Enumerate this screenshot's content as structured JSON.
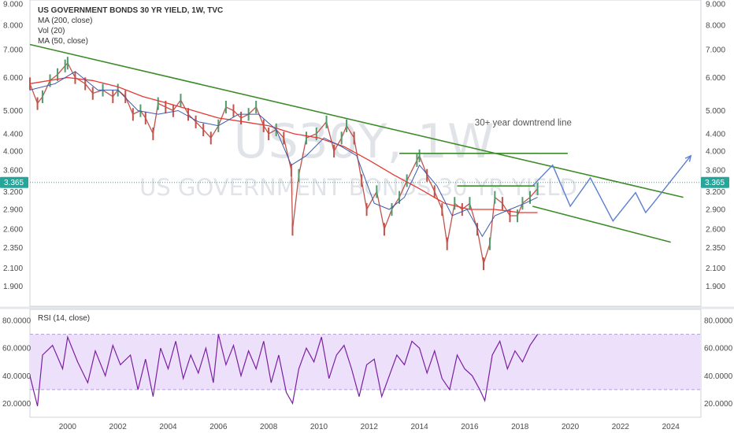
{
  "chart_data": {
    "type": "line",
    "title": "US GOVERNMENT BONDS 30 YR YIELD, 1W, TVC",
    "watermark_symbol": "US30Y, 1W",
    "watermark_name": "US GOVERNMENT BONDS 30 YR YIELD",
    "indicators": [
      "MA (200, close)",
      "Vol (20)",
      "MA (50, close)"
    ],
    "price_axis_ticks": [
      "1.900",
      "2.100",
      "2.350",
      "2.600",
      "2.900",
      "3.200",
      "3.600",
      "4.000",
      "4.400",
      "5.000",
      "6.000",
      "7.000",
      "8.000",
      "9.000"
    ],
    "price_axis_values": [
      1.9,
      2.1,
      2.35,
      2.6,
      2.9,
      3.2,
      3.6,
      4.0,
      4.4,
      5.0,
      6.0,
      7.0,
      8.0,
      9.0
    ],
    "ylim": [
      1.7,
      9.2
    ],
    "y_scale": "log",
    "x_ticks": [
      "2000",
      "2002",
      "2004",
      "2006",
      "2008",
      "2010",
      "2012",
      "2014",
      "2016",
      "2018",
      "2020",
      "2022",
      "2024"
    ],
    "x_tick_values": [
      2000,
      2002,
      2004,
      2006,
      2008,
      2010,
      2012,
      2014,
      2016,
      2018,
      2020,
      2022,
      2024
    ],
    "xlim": [
      1998.5,
      2025.2
    ],
    "last_price": "3.365",
    "last_price_value": 3.365,
    "colors": {
      "price_up": "#4f9b6b",
      "price_down": "#c2534b",
      "ma200": "#e53935",
      "ma50": "#3d59ab",
      "trendlines": "#3d8b2a",
      "projection": "#5b7fd0",
      "rsi": "#7b1fa2",
      "rsi_band": "#ede0fa",
      "price_line": "#27a89a",
      "badge": "#26a69a"
    },
    "price_series": {
      "x": [
        1998.5,
        1998.8,
        1999.0,
        1999.3,
        1999.6,
        1999.9,
        2000.0,
        2000.3,
        2000.7,
        2001.0,
        2001.4,
        2001.8,
        2002.0,
        2002.3,
        2002.6,
        2002.9,
        2003.1,
        2003.4,
        2003.6,
        2003.9,
        2004.2,
        2004.5,
        2004.8,
        2005.1,
        2005.4,
        2005.7,
        2006.0,
        2006.3,
        2006.6,
        2006.9,
        2007.2,
        2007.5,
        2007.8,
        2008.0,
        2008.3,
        2008.6,
        2008.9,
        2008.95,
        2009.2,
        2009.5,
        2009.9,
        2010.3,
        2010.6,
        2010.9,
        2011.1,
        2011.4,
        2011.7,
        2011.9,
        2012.3,
        2012.6,
        2012.9,
        2013.2,
        2013.5,
        2013.9,
        2014.0,
        2014.3,
        2014.6,
        2014.9,
        2015.1,
        2015.4,
        2015.7,
        2016.0,
        2016.3,
        2016.55,
        2016.8,
        2017.0,
        2017.3,
        2017.6,
        2017.9,
        2018.1,
        2018.4,
        2018.7
      ],
      "y": [
        5.8,
        5.2,
        5.4,
        5.9,
        6.1,
        6.4,
        6.5,
        6.0,
        5.8,
        5.5,
        5.6,
        5.4,
        5.6,
        5.4,
        4.9,
        5.0,
        4.8,
        4.4,
        5.2,
        5.1,
        5.0,
        5.3,
        4.9,
        4.7,
        4.5,
        4.3,
        4.6,
        5.1,
        5.0,
        4.8,
        4.9,
        5.1,
        4.6,
        4.4,
        4.5,
        4.3,
        3.6,
        2.6,
        3.5,
        4.3,
        4.4,
        4.7,
        4.0,
        4.3,
        4.6,
        4.3,
        3.4,
        2.9,
        3.2,
        2.6,
        2.9,
        3.1,
        3.4,
        3.8,
        3.9,
        3.5,
        3.2,
        2.9,
        2.4,
        3.0,
        2.9,
        3.0,
        2.6,
        2.15,
        2.4,
        3.1,
        3.0,
        2.8,
        2.8,
        3.0,
        3.1,
        3.25
      ]
    },
    "ma200_series": {
      "x": [
        1998.5,
        2000.0,
        2001.0,
        2002.0,
        2003.0,
        2004.0,
        2005.0,
        2006.0,
        2007.0,
        2008.0,
        2009.0,
        2010.0,
        2011.0,
        2012.0,
        2013.0,
        2014.0,
        2015.0,
        2016.0,
        2017.0,
        2018.0,
        2018.7
      ],
      "y": [
        5.8,
        6.0,
        5.9,
        5.7,
        5.4,
        5.2,
        5.0,
        4.8,
        4.7,
        4.6,
        4.4,
        4.3,
        4.1,
        3.8,
        3.5,
        3.25,
        3.0,
        2.9,
        2.9,
        2.85,
        2.85
      ]
    },
    "ma50_series": {
      "x": [
        1998.5,
        1999.5,
        2000.3,
        2001.2,
        2002.0,
        2002.8,
        2003.6,
        2004.4,
        2005.2,
        2006.0,
        2006.8,
        2007.6,
        2008.3,
        2008.9,
        2009.5,
        2010.2,
        2010.9,
        2011.5,
        2012.2,
        2012.8,
        2013.4,
        2014.0,
        2014.7,
        2015.3,
        2015.9,
        2016.5,
        2017.0,
        2017.6,
        2018.2,
        2018.7
      ],
      "y": [
        5.6,
        5.8,
        6.2,
        5.6,
        5.6,
        5.0,
        4.9,
        5.0,
        4.7,
        4.6,
        4.9,
        4.9,
        4.5,
        3.7,
        3.9,
        4.3,
        4.1,
        3.9,
        3.0,
        2.9,
        3.1,
        3.7,
        3.3,
        2.8,
        2.9,
        2.5,
        2.8,
        2.9,
        3.0,
        3.1
      ]
    },
    "trendlines": [
      {
        "x": [
          1998.5,
          2024.5
        ],
        "y": [
          7.2,
          3.1
        ]
      },
      {
        "x": [
          2018.5,
          2024.0
        ],
        "y": [
          2.95,
          2.42
        ]
      },
      {
        "x": [
          2013.2,
          2019.9
        ],
        "y": [
          3.95,
          3.95
        ]
      },
      {
        "x": [
          2015.5,
          2018.6
        ],
        "y": [
          3.3,
          3.3
        ]
      }
    ],
    "projection_path": {
      "x": [
        2018.5,
        2019.3,
        2020.0,
        2020.8,
        2021.7,
        2022.6,
        2023.0,
        2023.3,
        2024.8
      ],
      "y": [
        3.3,
        3.7,
        2.95,
        3.45,
        2.72,
        3.18,
        2.85,
        3.0,
        3.9
      ]
    },
    "annotations": [
      {
        "text": "30+ year downtrend line",
        "x": 2016.2,
        "y": 4.6
      }
    ],
    "rsi": {
      "label": "RSI (14, close)",
      "ticks": [
        "20.0000",
        "40.0000",
        "60.0000",
        "80.0000"
      ],
      "tick_values": [
        20,
        40,
        60,
        80
      ],
      "ylim": [
        10,
        88
      ],
      "band": [
        30,
        70
      ],
      "x": [
        1998.5,
        1998.8,
        1999.0,
        1999.4,
        1999.8,
        2000.0,
        2000.4,
        2000.8,
        2001.1,
        2001.5,
        2001.8,
        2002.1,
        2002.5,
        2002.8,
        2003.1,
        2003.4,
        2003.7,
        2004.0,
        2004.3,
        2004.6,
        2004.9,
        2005.2,
        2005.5,
        2005.8,
        2006.0,
        2006.3,
        2006.6,
        2006.9,
        2007.2,
        2007.5,
        2007.8,
        2008.1,
        2008.4,
        2008.7,
        2008.95,
        2009.2,
        2009.5,
        2009.8,
        2010.1,
        2010.4,
        2010.7,
        2011.0,
        2011.3,
        2011.6,
        2011.9,
        2012.2,
        2012.5,
        2012.8,
        2013.1,
        2013.4,
        2013.7,
        2014.0,
        2014.3,
        2014.6,
        2014.9,
        2015.2,
        2015.5,
        2015.8,
        2016.1,
        2016.4,
        2016.6,
        2016.9,
        2017.2,
        2017.5,
        2017.8,
        2018.1,
        2018.4,
        2018.7
      ],
      "y": [
        40,
        18,
        55,
        62,
        45,
        68,
        50,
        35,
        58,
        40,
        62,
        48,
        55,
        30,
        52,
        25,
        60,
        45,
        65,
        38,
        55,
        42,
        60,
        35,
        70,
        48,
        62,
        40,
        58,
        45,
        65,
        35,
        55,
        28,
        20,
        45,
        60,
        50,
        68,
        38,
        55,
        62,
        45,
        25,
        48,
        52,
        25,
        40,
        55,
        48,
        65,
        60,
        42,
        58,
        38,
        30,
        55,
        45,
        40,
        30,
        22,
        55,
        65,
        45,
        58,
        50,
        62,
        70
      ]
    }
  }
}
